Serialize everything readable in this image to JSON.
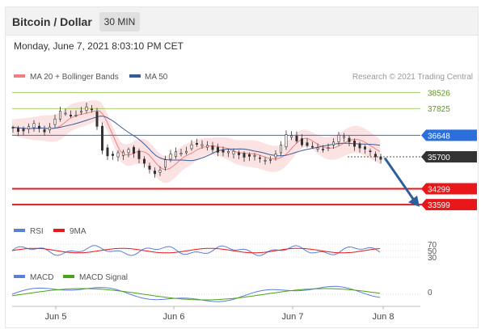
{
  "header": {
    "title": "Bitcoin / Dollar",
    "timeframe": "30 MIN",
    "timestamp": "Monday, June 7, 2021 8:03:10 PM CET"
  },
  "legend": {
    "bollinger": "MA 20 + Bollinger Bands",
    "ma50": "MA 50",
    "copyright": "Research © 2021 Trading Central",
    "rsi": "RSI",
    "rsi_ma": "9MA",
    "macd": "MACD",
    "macd_signal": "MACD Signal"
  },
  "colors": {
    "candle_up": "#ffffff",
    "candle_down": "#333333",
    "bollinger": "#f08080",
    "ma50": "#3b5a9a",
    "resistance": "#8cc63f",
    "pivot": "#2a6fdb",
    "support": "#e8171a",
    "rsi": "#5b7fd6",
    "rsi_ma": "#e8171a",
    "macd": "#5b7fd6",
    "macd_signal": "#4aa317",
    "arrow": "#2d5e9e"
  },
  "chart_data": {
    "type": "candlestick",
    "x_ticks": [
      "Jun 5",
      "Jun 6",
      "Jun 7",
      "Jun 8"
    ],
    "ylim": [
      33000,
      38900
    ],
    "levels": [
      {
        "value": 38526,
        "label": "38526",
        "kind": "resistance"
      },
      {
        "value": 37825,
        "label": "37825",
        "kind": "resistance"
      },
      {
        "value": 36648,
        "label": "36648",
        "kind": "pivot"
      },
      {
        "value": 35700,
        "label": "35700",
        "kind": "last"
      },
      {
        "value": 34299,
        "label": "34299",
        "kind": "support"
      },
      {
        "value": 33599,
        "label": "33599",
        "kind": "support"
      }
    ],
    "close_path": [
      [
        0,
        37000
      ],
      [
        8,
        36900
      ],
      [
        15,
        37050
      ],
      [
        20,
        36800
      ],
      [
        25,
        37200
      ],
      [
        30,
        37600
      ],
      [
        35,
        37500
      ],
      [
        40,
        37700
      ],
      [
        45,
        37800
      ],
      [
        50,
        37600
      ],
      [
        52,
        36500
      ],
      [
        55,
        35900
      ],
      [
        60,
        35700
      ],
      [
        65,
        35800
      ],
      [
        70,
        36200
      ],
      [
        75,
        35600
      ],
      [
        80,
        35100
      ],
      [
        85,
        35000
      ],
      [
        90,
        35600
      ],
      [
        95,
        35800
      ],
      [
        100,
        35900
      ],
      [
        105,
        36300
      ],
      [
        110,
        36100
      ],
      [
        115,
        36200
      ],
      [
        120,
        36000
      ],
      [
        125,
        35800
      ],
      [
        130,
        35900
      ],
      [
        135,
        35800
      ],
      [
        140,
        35700
      ],
      [
        145,
        35500
      ],
      [
        150,
        35700
      ],
      [
        155,
        36000
      ],
      [
        160,
        36700
      ],
      [
        165,
        36500
      ],
      [
        170,
        36200
      ],
      [
        175,
        36000
      ],
      [
        180,
        36100
      ],
      [
        185,
        36300
      ],
      [
        190,
        36600
      ],
      [
        195,
        36400
      ],
      [
        200,
        36200
      ],
      [
        205,
        35900
      ],
      [
        210,
        35700
      ]
    ],
    "rsi_levels": [
      70,
      50,
      30
    ],
    "macd_levels": [
      0
    ]
  }
}
